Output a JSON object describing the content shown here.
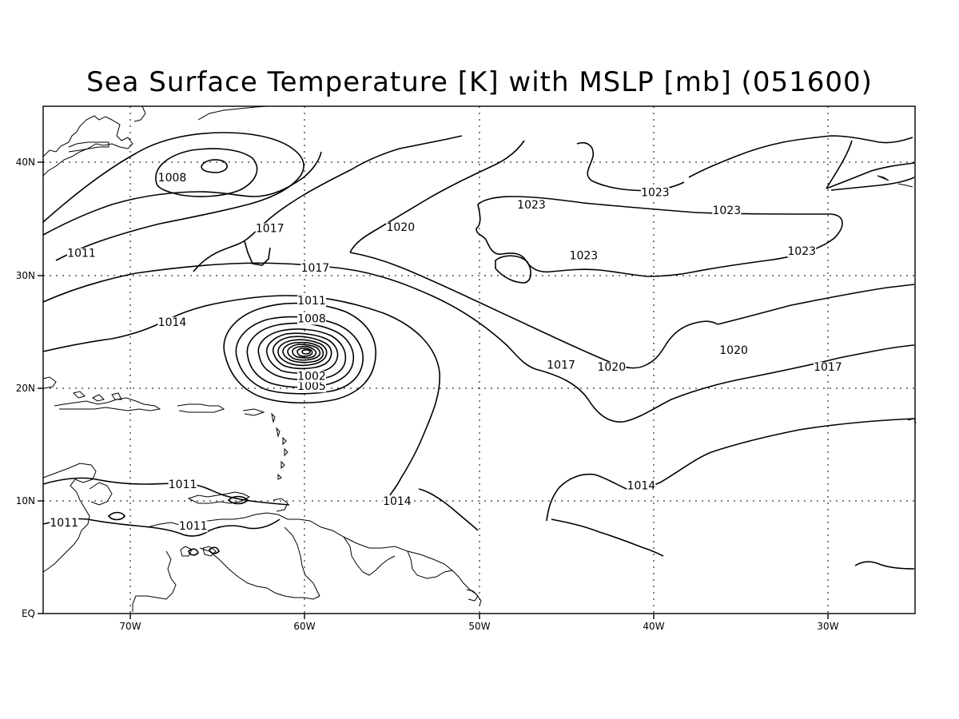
{
  "title": "Sea Surface Temperature [K] with MSLP [mb] (051600)",
  "axes": {
    "x_ticks": [
      "70W",
      "60W",
      "50W",
      "40W",
      "30W"
    ],
    "y_ticks": [
      "EQ",
      "10N",
      "20N",
      "30N",
      "40N"
    ],
    "lon_range": [
      -75,
      -25
    ],
    "lat_range": [
      0,
      45
    ],
    "grid": true
  },
  "contour_labels": [
    {
      "text": "1008",
      "lon": -67.6,
      "lat": 38.4
    },
    {
      "text": "1017",
      "lon": -62.0,
      "lat": 33.9
    },
    {
      "text": "1020",
      "lon": -54.5,
      "lat": 34.0
    },
    {
      "text": "1023",
      "lon": -47.0,
      "lat": 36.0
    },
    {
      "text": "1023",
      "lon": -39.9,
      "lat": 37.1
    },
    {
      "text": "1023",
      "lon": -35.8,
      "lat": 35.5
    },
    {
      "text": "1023",
      "lon": -44.0,
      "lat": 31.5
    },
    {
      "text": "1023",
      "lon": -31.5,
      "lat": 31.9
    },
    {
      "text": "1011",
      "lon": -72.8,
      "lat": 31.7
    },
    {
      "text": "1017",
      "lon": -59.4,
      "lat": 30.4
    },
    {
      "text": "1011",
      "lon": -59.6,
      "lat": 27.5
    },
    {
      "text": "1008",
      "lon": -59.6,
      "lat": 25.9
    },
    {
      "text": "1014",
      "lon": -67.6,
      "lat": 25.6
    },
    {
      "text": "1005",
      "lon": -59.6,
      "lat": 19.9
    },
    {
      "text": "1002",
      "lon": -59.6,
      "lat": 20.8
    },
    {
      "text": "1020",
      "lon": -35.4,
      "lat": 23.1
    },
    {
      "text": "1017",
      "lon": -45.3,
      "lat": 21.8
    },
    {
      "text": "1020",
      "lon": -42.4,
      "lat": 21.6
    },
    {
      "text": "1017",
      "lon": -30.0,
      "lat": 21.6
    },
    {
      "text": "1011",
      "lon": -67.0,
      "lat": 11.2
    },
    {
      "text": "1014",
      "lon": -54.7,
      "lat": 9.7
    },
    {
      "text": "1014",
      "lon": -40.7,
      "lat": 11.1
    },
    {
      "text": "1011",
      "lon": -73.8,
      "lat": 7.8
    },
    {
      "text": "1011",
      "lon": -66.4,
      "lat": 7.5
    }
  ]
}
